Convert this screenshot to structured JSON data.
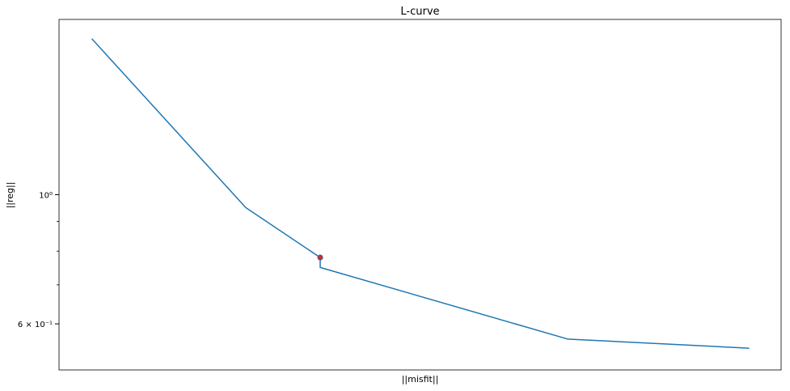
{
  "chart_data": {
    "type": "line",
    "title": "L-curve",
    "xlabel": "||misfit||",
    "ylabel": "||reg||",
    "x_scale": "log",
    "y_scale": "log",
    "grid": false,
    "legend": "none",
    "ylim": [
      0.5,
      2.0
    ],
    "y_tick_labels": [
      "10⁰",
      "6 × 10⁻¹"
    ],
    "y_tick_values": [
      1.0,
      0.6
    ],
    "y_minor_ticks": [
      0.9,
      0.8,
      0.7
    ],
    "series": [
      {
        "color": "#1f77b4",
        "x": [
          1,
          2,
          3,
          4,
          5,
          6
        ],
        "y": [
          1.85,
          0.95,
          0.78,
          0.75,
          0.565,
          0.545
        ]
      }
    ],
    "highlight_point": {
      "x": 3,
      "y": 0.78,
      "color": "#d62728"
    }
  }
}
